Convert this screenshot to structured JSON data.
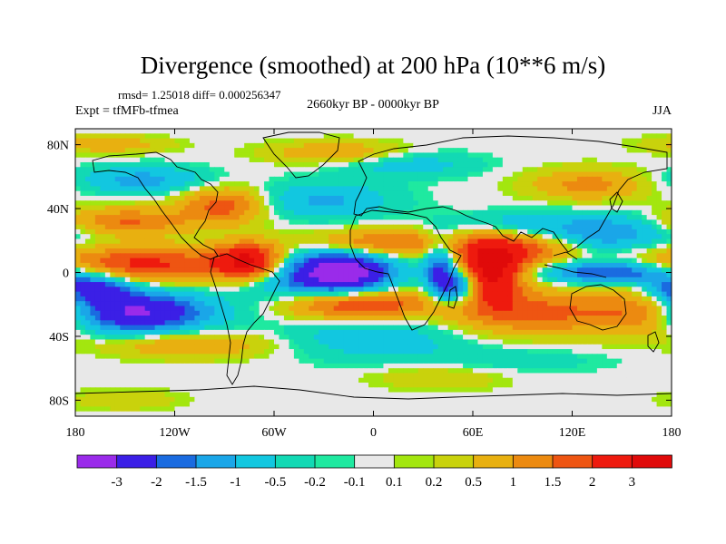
{
  "chart_data": {
    "type": "heatmap",
    "title": "Divergence (smoothed) at 200 hPa (10**6 m/s)",
    "subtitle_stats": "rmsd= 1.25018 diff= 0.000256347",
    "experiment": "Expt = tfMFb-tfmea",
    "period": "2660kyr BP - 0000kyr BP",
    "season": "JJA",
    "x_ticks": [
      {
        "lon": -180,
        "label": "180"
      },
      {
        "lon": -120,
        "label": "120W"
      },
      {
        "lon": -60,
        "label": "60W"
      },
      {
        "lon": 0,
        "label": "0"
      },
      {
        "lon": 60,
        "label": "60E"
      },
      {
        "lon": 120,
        "label": "120E"
      },
      {
        "lon": 180,
        "label": "180"
      }
    ],
    "y_ticks": [
      {
        "lat": 80,
        "label": "80N"
      },
      {
        "lat": 40,
        "label": "40N"
      },
      {
        "lat": 0,
        "label": "0"
      },
      {
        "lat": -40,
        "label": "40S"
      },
      {
        "lat": -80,
        "label": "80S"
      }
    ],
    "xlim": [
      -180,
      180
    ],
    "ylim": [
      -90,
      90
    ],
    "colorbar": {
      "labels": [
        "-3",
        "-2",
        "-1.5",
        "-1",
        "-0.5",
        "-0.2",
        "-0.1",
        "0.1",
        "0.2",
        "0.5",
        "1",
        "1.5",
        "2",
        "3"
      ],
      "colors": [
        "#9a2bea",
        "#3b1fe6",
        "#1a6be0",
        "#1aa6e8",
        "#12c7e0",
        "#12d9b4",
        "#1fe9a0",
        "#e8e8e8",
        "#a3e60f",
        "#c9d20c",
        "#e8b010",
        "#ec8a10",
        "#ee5512",
        "#ee1a0e",
        "#e00a0a"
      ]
    },
    "anomalies": [
      {
        "lon": -20,
        "lat": 0,
        "sx": 22,
        "sy": 10,
        "value": -4.0
      },
      {
        "lon": -145,
        "lat": -25,
        "sx": 32,
        "sy": 9,
        "value": -3.2
      },
      {
        "lon": -170,
        "lat": -10,
        "sx": 16,
        "sy": 6,
        "value": -2.6
      },
      {
        "lon": 50,
        "lat": -8,
        "sx": 10,
        "sy": 8,
        "value": -2.8
      },
      {
        "lon": 145,
        "lat": 0,
        "sx": 30,
        "sy": 5,
        "value": -2.4
      },
      {
        "lon": 40,
        "lat": 5,
        "sx": 6,
        "sy": 12,
        "value": -1.8
      },
      {
        "lon": -140,
        "lat": 58,
        "sx": 28,
        "sy": 6,
        "value": -1.2
      },
      {
        "lon": -30,
        "lat": 45,
        "sx": 30,
        "sy": 8,
        "value": -1.1
      },
      {
        "lon": 20,
        "lat": 68,
        "sx": 30,
        "sy": 6,
        "value": -0.8
      },
      {
        "lon": 140,
        "lat": 25,
        "sx": 30,
        "sy": 8,
        "value": -1.5
      },
      {
        "lon": 0,
        "lat": -40,
        "sx": 40,
        "sy": 10,
        "value": -0.9
      },
      {
        "lon": -60,
        "lat": -5,
        "sx": 18,
        "sy": 10,
        "value": -0.8
      },
      {
        "lon": 80,
        "lat": 30,
        "sx": 25,
        "sy": 6,
        "value": -0.9
      },
      {
        "lon": 80,
        "lat": -55,
        "sx": 45,
        "sy": 6,
        "value": -0.4
      },
      {
        "lon": 70,
        "lat": 2,
        "sx": 14,
        "sy": 14,
        "value": 3.6
      },
      {
        "lon": -140,
        "lat": 5,
        "sx": 42,
        "sy": 8,
        "value": 2.2
      },
      {
        "lon": -75,
        "lat": 7,
        "sx": 14,
        "sy": 8,
        "value": 3.0
      },
      {
        "lon": -10,
        "lat": -20,
        "sx": 30,
        "sy": 7,
        "value": 2.4
      },
      {
        "lon": -150,
        "lat": 32,
        "sx": 28,
        "sy": 6,
        "value": 1.6
      },
      {
        "lon": -90,
        "lat": 42,
        "sx": 18,
        "sy": 8,
        "value": 1.8
      },
      {
        "lon": 5,
        "lat": 18,
        "sx": 32,
        "sy": 6,
        "value": 1.8
      },
      {
        "lon": 95,
        "lat": 15,
        "sx": 20,
        "sy": 8,
        "value": 1.6
      },
      {
        "lon": 100,
        "lat": -25,
        "sx": 40,
        "sy": 10,
        "value": 1.7
      },
      {
        "lon": 165,
        "lat": -25,
        "sx": 20,
        "sy": 10,
        "value": 1.5
      },
      {
        "lon": -110,
        "lat": -45,
        "sx": 35,
        "sy": 6,
        "value": 1.1
      },
      {
        "lon": 130,
        "lat": 55,
        "sx": 25,
        "sy": 7,
        "value": 1.2
      },
      {
        "lon": -20,
        "lat": 75,
        "sx": 30,
        "sy": 5,
        "value": 1.0
      },
      {
        "lon": -160,
        "lat": 80,
        "sx": 25,
        "sy": 4,
        "value": 0.8
      },
      {
        "lon": 40,
        "lat": -65,
        "sx": 30,
        "sy": 6,
        "value": 0.5
      },
      {
        "lon": -150,
        "lat": -80,
        "sx": 25,
        "sy": 5,
        "value": 0.4
      }
    ]
  }
}
